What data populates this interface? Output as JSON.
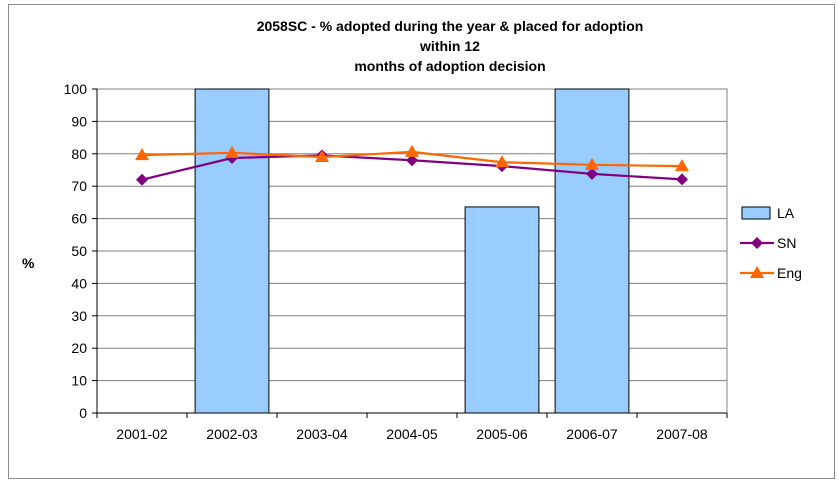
{
  "chart_data": {
    "type": "bar",
    "title_line1": "2058SC - % adopted during the year & placed for adoption within 12",
    "title_line2": "months of adoption decision",
    "ylabel": "%",
    "xlabel": "",
    "ylim": [
      0,
      100
    ],
    "yticks": [
      0,
      10,
      20,
      30,
      40,
      50,
      60,
      70,
      80,
      90,
      100
    ],
    "grid": true,
    "legend_position": "right",
    "categories": [
      "2001-02",
      "2002-03",
      "2003-04",
      "2004-05",
      "2005-06",
      "2006-07",
      "2007-08"
    ],
    "series": [
      {
        "name": "LA",
        "kind": "bar",
        "color": "#99ccff",
        "values": [
          null,
          100,
          null,
          null,
          63.6,
          100,
          null
        ]
      },
      {
        "name": "SN",
        "kind": "line",
        "marker": "diamond",
        "color": "#800080",
        "values": [
          72,
          78.7,
          79.5,
          78,
          76.2,
          73.8,
          72.1
        ]
      },
      {
        "name": "Eng",
        "kind": "line",
        "marker": "triangle",
        "color": "#ff6600",
        "values": [
          79.6,
          80.3,
          79,
          80.6,
          77.4,
          76.6,
          76.2
        ]
      }
    ]
  }
}
